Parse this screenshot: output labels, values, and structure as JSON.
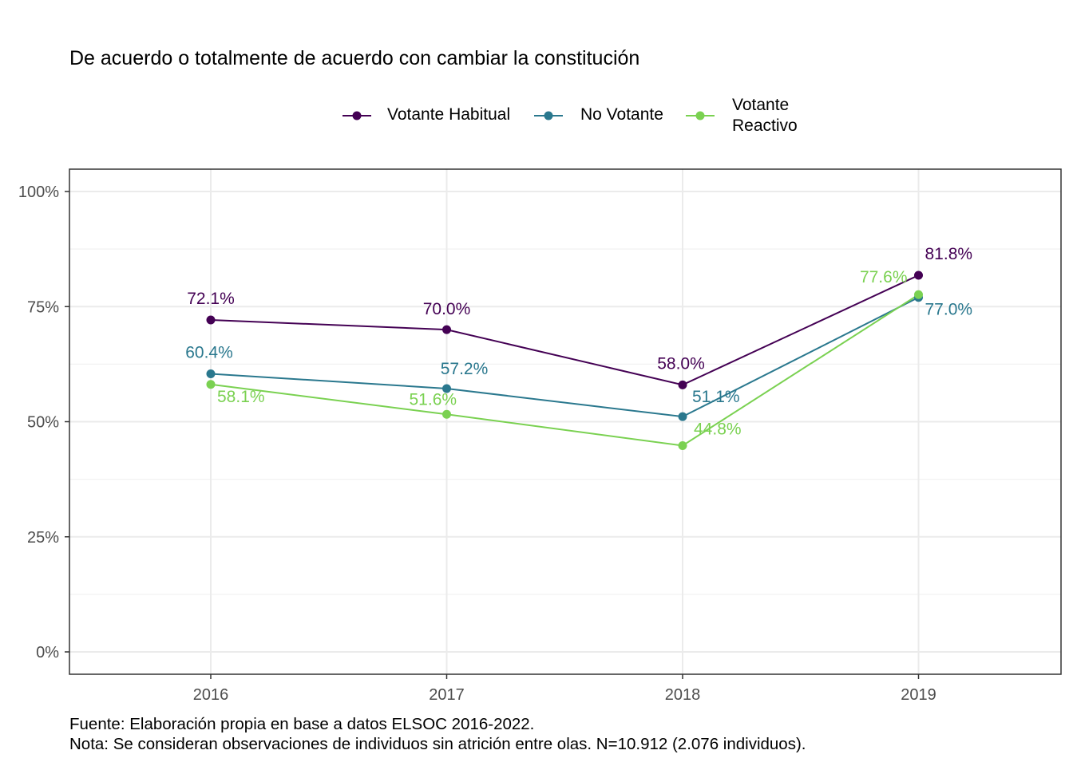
{
  "chart_data": {
    "type": "line",
    "title": "De acuerdo o totalmente de acuerdo con cambiar la constitución",
    "xlabel": "",
    "ylabel": "",
    "categories": [
      "2016",
      "2017",
      "2018",
      "2019"
    ],
    "ylim": [
      -0.05,
      1.05
    ],
    "y_ticks": [
      0,
      0.25,
      0.5,
      0.75,
      1.0
    ],
    "y_tick_labels": [
      "0%",
      "25%",
      "50%",
      "75%",
      "100%"
    ],
    "grid": true,
    "legend_position": "top",
    "series": [
      {
        "name": "Votante Habitual",
        "color": "#440154",
        "values": [
          0.721,
          0.7,
          0.58,
          0.818
        ],
        "labels": [
          "72.1%",
          "70.0%",
          "58.0%",
          "81.8%"
        ]
      },
      {
        "name": "No Votante",
        "color": "#2A788E",
        "values": [
          0.604,
          0.572,
          0.511,
          0.77
        ],
        "labels": [
          "60.4%",
          "57.2%",
          "51.1%",
          "77.0%"
        ]
      },
      {
        "name": "Votante\nReactivo",
        "color": "#7AD151",
        "values": [
          0.581,
          0.516,
          0.448,
          0.776
        ],
        "labels": [
          "58.1%",
          "51.6%",
          "44.8%",
          "77.6%"
        ]
      }
    ]
  },
  "caption": {
    "source": "Fuente: Elaboración propia en base a datos ELSOC 2016-2022.",
    "note": "Nota: Se consideran observaciones de individuos sin atrición entre olas. N=10.912 (2.076 individuos)."
  }
}
